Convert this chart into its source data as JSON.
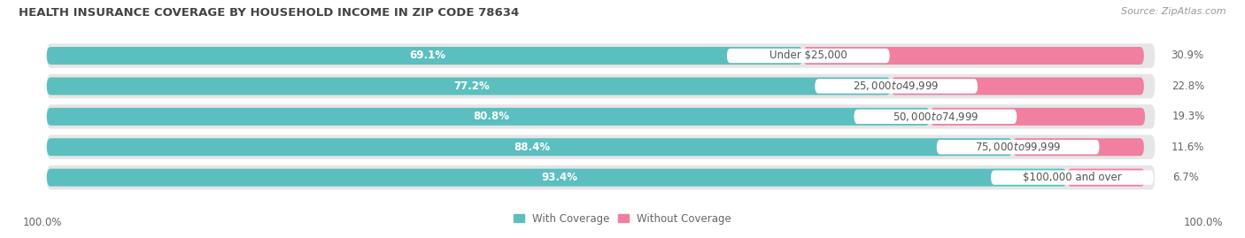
{
  "title": "HEALTH INSURANCE COVERAGE BY HOUSEHOLD INCOME IN ZIP CODE 78634",
  "source": "Source: ZipAtlas.com",
  "categories": [
    "Under $25,000",
    "$25,000 to $49,999",
    "$50,000 to $74,999",
    "$75,000 to $99,999",
    "$100,000 and over"
  ],
  "with_coverage": [
    69.1,
    77.2,
    80.8,
    88.4,
    93.4
  ],
  "without_coverage": [
    30.9,
    22.8,
    19.3,
    11.6,
    6.7
  ],
  "color_coverage": "#5bbfbf",
  "color_without": "#f07fa0",
  "color_bg_bar": "#e6e6e6",
  "color_bg_fig": "#ffffff",
  "legend_labels": [
    "With Coverage",
    "Without Coverage"
  ],
  "left_label": "100.0%",
  "right_label": "100.0%",
  "title_fontsize": 9.5,
  "source_fontsize": 8.0,
  "bar_label_fontsize": 8.5,
  "category_fontsize": 8.5,
  "tick_fontsize": 8.5
}
